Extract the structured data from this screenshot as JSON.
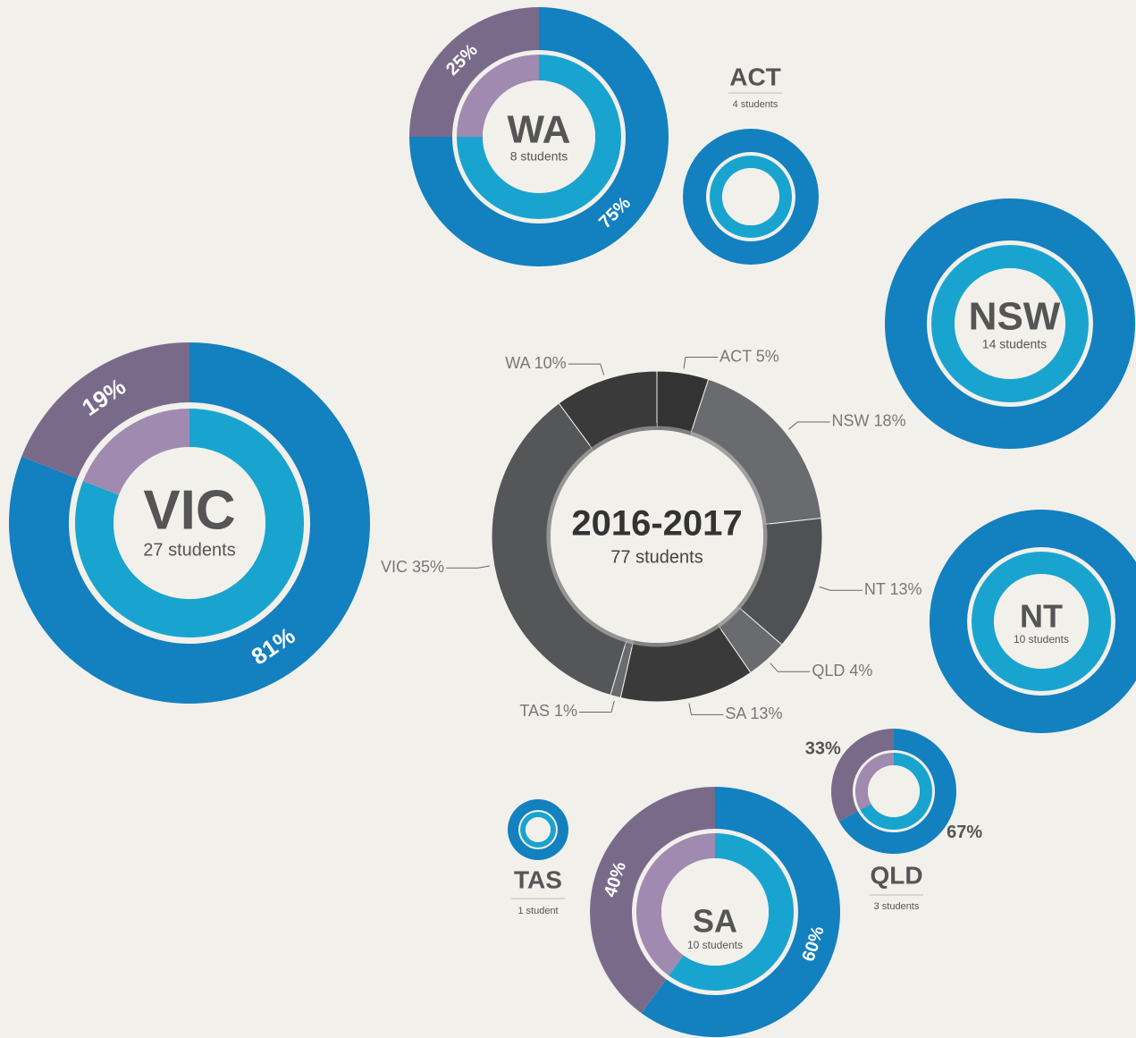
{
  "chart_data": [
    {
      "type": "donut",
      "title": "2016-2017",
      "subtitle": "77 students",
      "values": [
        5,
        18,
        13,
        4,
        13,
        1,
        35,
        10
      ],
      "value_labels": [
        "ACT 5%",
        "NSW 18%",
        "NT 13%",
        "QLD 4%",
        "SA 13%",
        "TAS 1%",
        "VIC 35%",
        "WA 10%"
      ],
      "colors": [
        "#333333",
        "#6a6b6e",
        "#505154",
        "#6a6b6e",
        "#3a3a3a",
        "#6a6b6e",
        "#555658",
        "#3a3a3a"
      ]
    },
    {
      "type": "ring",
      "title": "WA",
      "subtitle": "8 students",
      "values": [
        75,
        25
      ],
      "value_labels": [
        "75%",
        "25%"
      ],
      "colors": [
        "#1380c0",
        "#7a6a8a"
      ],
      "inner_colors": [
        "#19a4d0",
        "#a08ab0"
      ]
    },
    {
      "type": "ring",
      "title": "ACT",
      "subtitle": "4 students",
      "values": [
        100
      ],
      "colors": [
        "#1380c0"
      ],
      "inner_colors": [
        "#19a4d0"
      ]
    },
    {
      "type": "ring",
      "title": "NSW",
      "subtitle": "14 students",
      "values": [
        100
      ],
      "colors": [
        "#1380c0"
      ],
      "inner_colors": [
        "#19a4d0"
      ]
    },
    {
      "type": "ring",
      "title": "VIC",
      "subtitle": "27 students",
      "values": [
        81,
        19
      ],
      "value_labels": [
        "81%",
        "19%"
      ],
      "colors": [
        "#1380c0",
        "#7a6a8a"
      ],
      "inner_colors": [
        "#19a4d0",
        "#a08ab0"
      ]
    },
    {
      "type": "ring",
      "title": "NT",
      "subtitle": "10 students",
      "values": [
        100
      ],
      "colors": [
        "#1380c0"
      ],
      "inner_colors": [
        "#19a4d0"
      ]
    },
    {
      "type": "ring",
      "title": "QLD",
      "subtitle": "3 students",
      "values": [
        67,
        33
      ],
      "value_labels": [
        "67%",
        "33%"
      ],
      "colors": [
        "#1380c0",
        "#7a6a8a"
      ],
      "inner_colors": [
        "#19a4d0",
        "#a08ab0"
      ]
    },
    {
      "type": "ring",
      "title": "TAS",
      "subtitle": "1 student",
      "values": [
        100
      ],
      "colors": [
        "#1380c0"
      ],
      "inner_colors": [
        "#19a4d0"
      ]
    },
    {
      "type": "ring",
      "title": "SA",
      "subtitle": "10 students",
      "values": [
        60,
        40
      ],
      "value_labels": [
        "60%",
        "40%"
      ],
      "colors": [
        "#1380c0",
        "#7a6a8a"
      ],
      "inner_colors": [
        "#19a4d0",
        "#a08ab0"
      ]
    }
  ]
}
